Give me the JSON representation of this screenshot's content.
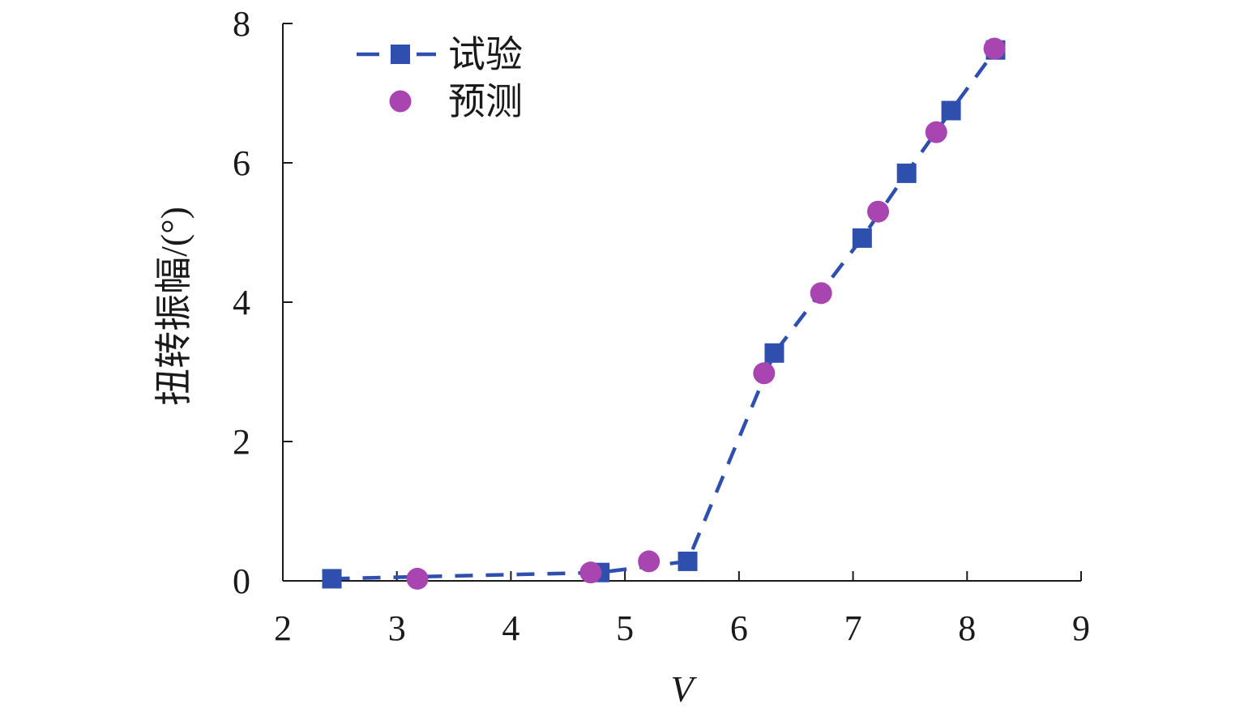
{
  "chart_data": {
    "type": "scatter",
    "title": "",
    "xlabel": "V",
    "ylabel": "扭转振幅/(°)",
    "xlim": [
      2,
      9
    ],
    "ylim": [
      0,
      8
    ],
    "xticks": [
      2,
      3,
      4,
      5,
      6,
      7,
      8,
      9
    ],
    "yticks": [
      0,
      2,
      4,
      6,
      8
    ],
    "grid": false,
    "legend_position": "top-left",
    "series": [
      {
        "name": "试验",
        "marker": "square",
        "line": "dashed",
        "color": "#2e4fad",
        "points": [
          [
            2.43,
            0.03
          ],
          [
            4.78,
            0.12
          ],
          [
            5.55,
            0.28
          ],
          [
            6.31,
            3.27
          ],
          [
            7.08,
            4.92
          ],
          [
            7.47,
            5.85
          ],
          [
            7.86,
            6.75
          ],
          [
            8.25,
            7.62
          ]
        ]
      },
      {
        "name": "预测",
        "marker": "circle",
        "line": "none",
        "color": "#a845b0",
        "points": [
          [
            3.18,
            0.03
          ],
          [
            4.7,
            0.12
          ],
          [
            5.21,
            0.28
          ],
          [
            6.22,
            2.98
          ],
          [
            6.72,
            4.13
          ],
          [
            7.22,
            5.3
          ],
          [
            7.73,
            6.44
          ],
          [
            8.24,
            7.64
          ]
        ]
      }
    ]
  }
}
